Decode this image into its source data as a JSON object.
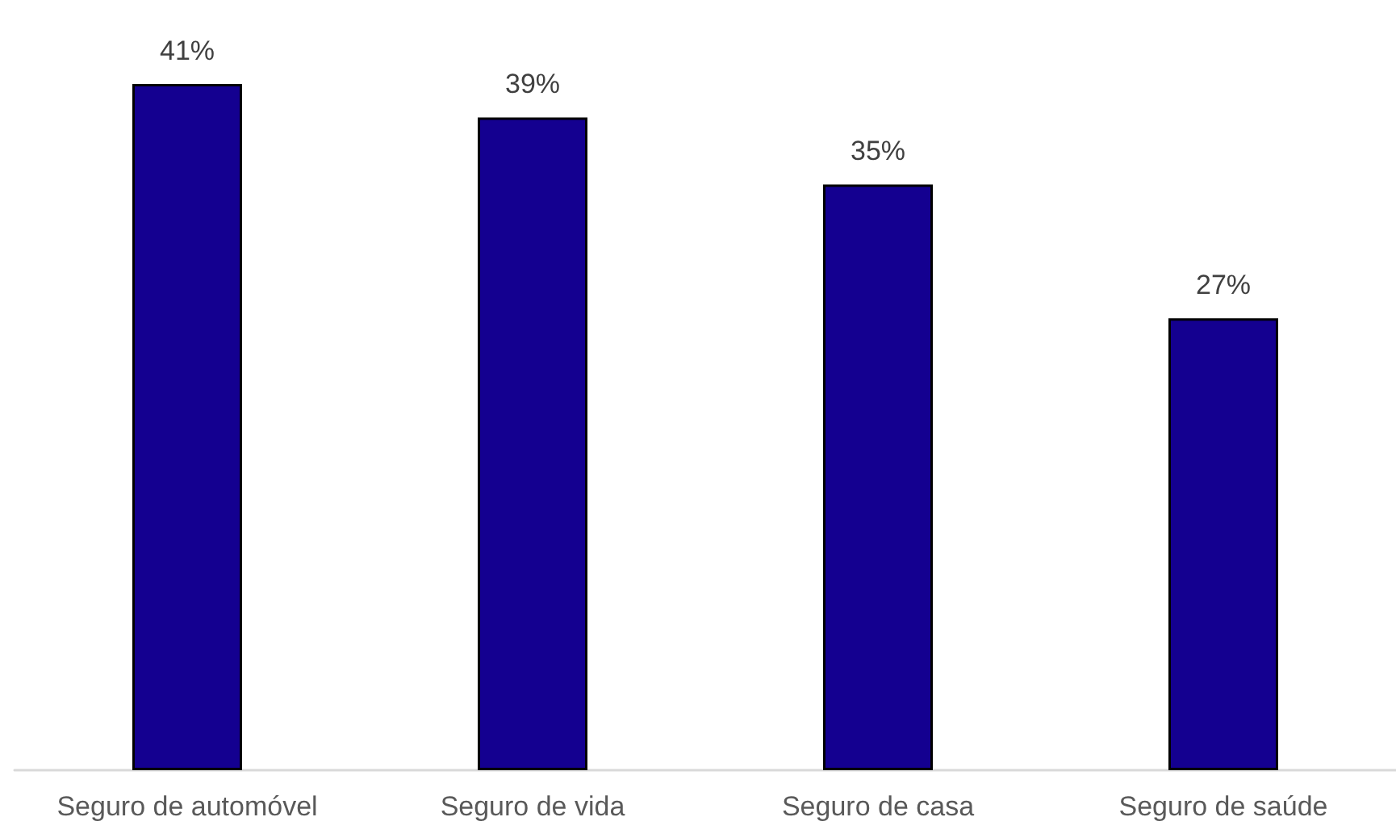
{
  "chart_data": {
    "type": "bar",
    "categories": [
      "Seguro de automóvel",
      "Seguro de vida",
      "Seguro de casa",
      "Seguro de saúde"
    ],
    "values": [
      41,
      39,
      35,
      27
    ],
    "value_labels": [
      "41%",
      "39%",
      "35%",
      "27%"
    ],
    "color": "#140090"
  }
}
